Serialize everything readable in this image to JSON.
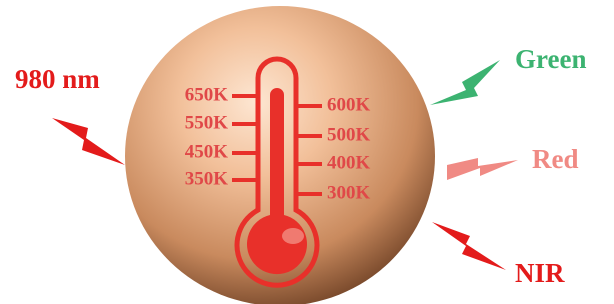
{
  "excitation": "980 nm",
  "emissions": [
    "Green",
    "Red",
    "NIR"
  ],
  "thermometer": {
    "left_ticks": [
      "650K",
      "550K",
      "450K",
      "350K"
    ],
    "right_ticks": [
      "600K",
      "500K",
      "400K",
      "300K"
    ]
  }
}
